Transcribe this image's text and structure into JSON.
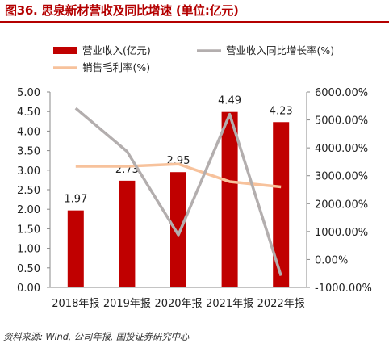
{
  "title": "图36. 思泉新材营收及同比增速 (单位:亿元)",
  "source": "资料来源: Wind, 公司年报, 国投证券研究中心",
  "colors": {
    "bar": "#c00000",
    "growth": "#b3aeae",
    "margin": "#f7c29c",
    "title": "#b40000"
  },
  "chart_data": {
    "type": "bar",
    "categories": [
      "2018年报",
      "2019年报",
      "2020年报",
      "2021年报",
      "2022年报"
    ],
    "left_axis": {
      "min": 0,
      "max": 5,
      "step": 0.5,
      "ticks": [
        "0.00",
        "0.50",
        "1.00",
        "1.50",
        "2.00",
        "2.50",
        "3.00",
        "3.50",
        "4.00",
        "4.50",
        "5.00"
      ]
    },
    "right_axis": {
      "min": -1000,
      "max": 6000,
      "step": 1000,
      "ticks": [
        "-1000.00%",
        "0.00%",
        "1000.00%",
        "2000.00%",
        "3000.00%",
        "4000.00%",
        "5000.00%",
        "6000.00%"
      ]
    },
    "series": [
      {
        "name": "营业收入(亿元)",
        "type": "bar",
        "axis": "left",
        "values": [
          1.97,
          2.73,
          2.95,
          4.49,
          4.23
        ],
        "labels": [
          "1.97",
          "2.73",
          "2.95",
          "4.49",
          "4.23"
        ]
      },
      {
        "name": "营业收入同比增长率(%)",
        "type": "line",
        "axis": "right",
        "values": [
          5420,
          3870,
          880,
          5200,
          -580
        ]
      },
      {
        "name": "销售毛利率(%)",
        "type": "line",
        "axis": "right",
        "values": [
          3340,
          3340,
          3420,
          2790,
          2600
        ]
      }
    ],
    "legend_position": "top",
    "grid": false
  }
}
